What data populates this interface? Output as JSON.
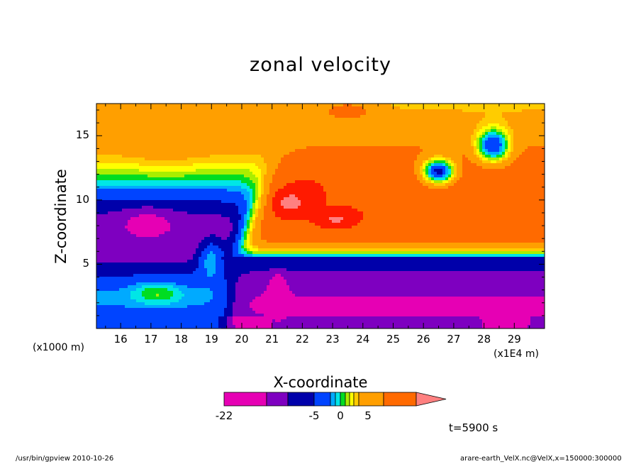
{
  "chart_data": {
    "type": "heatmap",
    "title": "zonal velocity",
    "xlabel": "X-coordinate",
    "ylabel": "Z-coordinate",
    "x_units_label": "(x1E4 m)",
    "y_units_label": "(x1000 m)",
    "xlim": [
      15.2,
      30
    ],
    "ylim": [
      0,
      17.5
    ],
    "x_ticks": [
      "16",
      "17",
      "18",
      "19",
      "20",
      "21",
      "22",
      "23",
      "24",
      "25",
      "26",
      "27",
      "28",
      "29"
    ],
    "y_ticks": [
      "5",
      "10",
      "15"
    ],
    "colorbar": {
      "tick_labels": [
        "-22",
        "-5",
        "0",
        "5"
      ],
      "levels": [
        -22,
        -10,
        -7,
        -5,
        -3,
        -2,
        -1,
        0,
        1,
        2,
        3,
        5,
        7,
        10,
        15
      ],
      "colors": [
        "#e600b4",
        "#7e00c0",
        "#0000aa",
        "#0044ff",
        "#00aaff",
        "#00e6e6",
        "#00dd22",
        "#aaee00",
        "#ffff00",
        "#ffcc00",
        "#ff9f00",
        "#ff6a00",
        "#ff1a00",
        "#ff8080"
      ],
      "extend": "max"
    },
    "annotation": "t=5900 s"
  },
  "footer": {
    "left": "/usr/bin/gpview   2010-10-26",
    "right": "arare-earth_VelX.nc@VelX,x=150000:300000"
  }
}
